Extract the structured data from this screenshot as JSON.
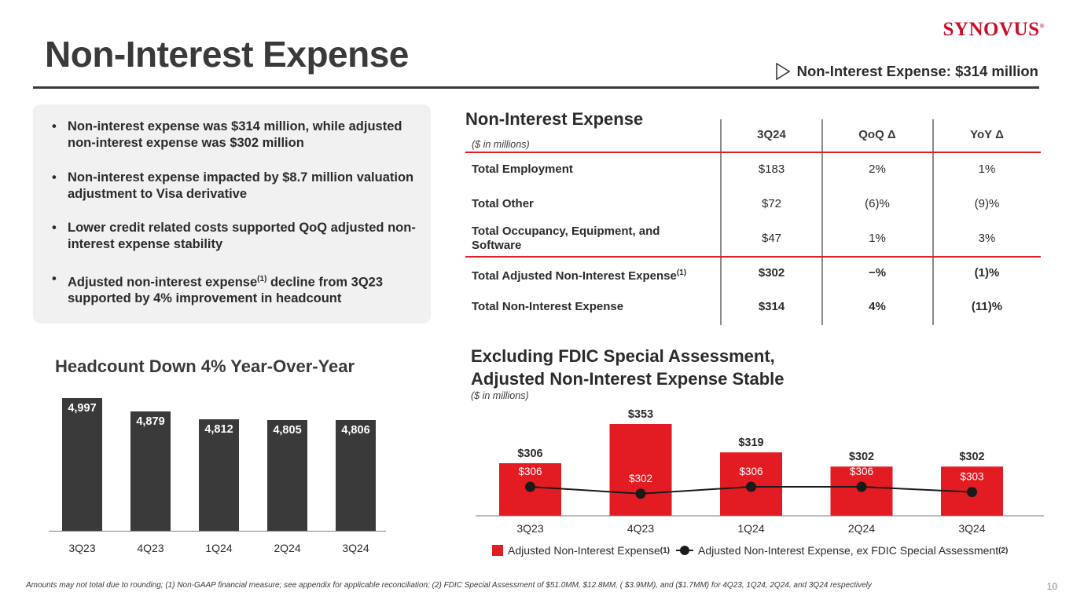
{
  "header": {
    "title": "Non-Interest Expense",
    "logo_text": "SYNOVUS",
    "logo_mark": "®",
    "headline": "Non-Interest Expense: $314 million"
  },
  "bullets": [
    {
      "text": "Non-interest expense was $314 million, while adjusted non-interest expense was $302 million"
    },
    {
      "text": "Non-interest expense impacted by $8.7 million valuation adjustment to Visa derivative"
    },
    {
      "text": "Lower credit related costs supported QoQ adjusted non-interest expense stability"
    },
    {
      "text_before": "Adjusted non-interest expense",
      "sup": "(1)",
      "text_after": " decline from 3Q23 supported by 4% improvement in headcount"
    }
  ],
  "expense_table": {
    "title": "Non-Interest Expense",
    "subtitle": "($ in millions)",
    "headers": [
      "3Q24",
      "QoQ Δ",
      "YoY Δ"
    ],
    "rows": [
      {
        "label": "Total Employment",
        "sup": "",
        "value": "$183",
        "qoq": "2%",
        "yoy": "1%"
      },
      {
        "label": "Total Other",
        "sup": "",
        "value": "$72",
        "qoq": "(6)%",
        "yoy": "(9)%"
      },
      {
        "label": "Total Occupancy, Equipment, and Software",
        "sup": "",
        "value": "$47",
        "qoq": "1%",
        "yoy": "3%"
      },
      {
        "label": "Total Adjusted Non-Interest Expense",
        "sup": "(1)",
        "value": "$302",
        "qoq": "−%",
        "yoy": "(1)%"
      },
      {
        "label": "Total Non-Interest Expense",
        "sup": "",
        "value": "$314",
        "qoq": "4%",
        "yoy": "(11)%"
      }
    ]
  },
  "headcount_chart_title": "Headcount Down 4% Year-Over-Year",
  "expense_chart_title_line1": "Excluding FDIC Special Assessment,",
  "expense_chart_title_line2": "Adjusted Non-Interest Expense Stable",
  "expense_chart_subtitle": "($ in millions)",
  "legend": {
    "bar_label": "Adjusted Non-Interest Expense",
    "bar_sup": "(1)",
    "line_label": "Adjusted Non-Interest Expense, ex FDIC Special Assessment",
    "line_sup": "(2)"
  },
  "chart_data": [
    {
      "type": "bar",
      "title": "Headcount Down 4% Year-Over-Year",
      "categories": [
        "3Q23",
        "4Q23",
        "1Q24",
        "2Q24",
        "3Q24"
      ],
      "values": [
        4997,
        4879,
        4812,
        4805,
        4806
      ],
      "labels": [
        "4,997",
        "4,879",
        "4,812",
        "4,805",
        "4,806"
      ],
      "xlabel": "",
      "ylabel": "",
      "color": "#3a3a3a"
    },
    {
      "type": "bar",
      "title": "Excluding FDIC Special Assessment, Adjusted Non-Interest Expense Stable",
      "subtitle": "($ in millions)",
      "categories": [
        "3Q23",
        "4Q23",
        "1Q24",
        "2Q24",
        "3Q24"
      ],
      "series": [
        {
          "name": "Adjusted Non-Interest Expense",
          "kind": "bar",
          "values": [
            306,
            353,
            319,
            302,
            302
          ],
          "labels": [
            "$306",
            "$353",
            "$319",
            "$302",
            "$302"
          ],
          "color": "#e31b23"
        },
        {
          "name": "Adjusted Non-Interest Expense, ex FDIC Special Assessment",
          "kind": "line",
          "values": [
            306,
            302,
            306,
            306,
            303
          ],
          "labels": [
            "$306",
            "$302",
            "$306",
            "$306",
            "$303"
          ],
          "color": "#1a1a1a"
        }
      ]
    }
  ],
  "footnote": "Amounts may not total due to rounding; (1) Non-GAAP financial measure; see appendix for applicable reconciliation; (2) FDIC Special Assessment of $51.0MM, $12.8MM, ( $3.9MM), and ($1.7MM) for 4Q23, 1Q24, 2Q24, and 3Q24 respectively",
  "page_number": "10"
}
